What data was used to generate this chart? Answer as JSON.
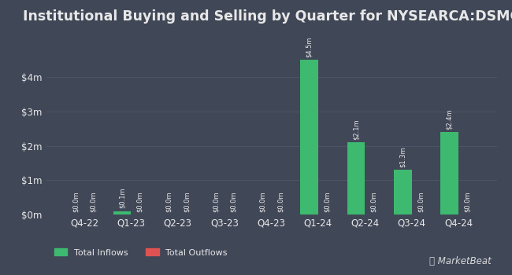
{
  "title": "Institutional Buying and Selling by Quarter for NYSEARCA:DSMC",
  "quarters": [
    "Q4-22",
    "Q1-23",
    "Q2-23",
    "Q3-23",
    "Q4-23",
    "Q1-24",
    "Q2-24",
    "Q3-24",
    "Q4-24"
  ],
  "inflows": [
    0.0,
    0.1,
    0.0,
    0.0,
    0.0,
    4.5,
    2.1,
    1.3,
    2.4
  ],
  "outflows": [
    0.0,
    0.0,
    0.0,
    0.0,
    0.0,
    0.0,
    0.0,
    0.0,
    0.0
  ],
  "inflow_labels": [
    "$0.0m",
    "$0.1m",
    "$0.0m",
    "$0.0m",
    "$0.0m",
    "$4.5m",
    "$2.1m",
    "$1.3m",
    "$2.4m"
  ],
  "outflow_labels": [
    "$0.0m",
    "$0.0m",
    "$0.0m",
    "$0.0m",
    "$0.0m",
    "$0.0m",
    "$0.0m",
    "$0.0m",
    "$0.0m"
  ],
  "inflow_color": "#3dba6f",
  "outflow_color": "#e05252",
  "bg_color": "#404757",
  "text_color": "#e8e8e8",
  "grid_color": "#4d5566",
  "ylim": [
    0,
    5.2
  ],
  "yticks": [
    0,
    1,
    2,
    3,
    4
  ],
  "ytick_labels": [
    "$0m",
    "$1m",
    "$2m",
    "$3m",
    "$4m"
  ],
  "bar_width": 0.38,
  "title_fontsize": 12.5,
  "legend_labels": [
    "Total Inflows",
    "Total Outflows"
  ],
  "watermark": "╲ MarketBeat"
}
